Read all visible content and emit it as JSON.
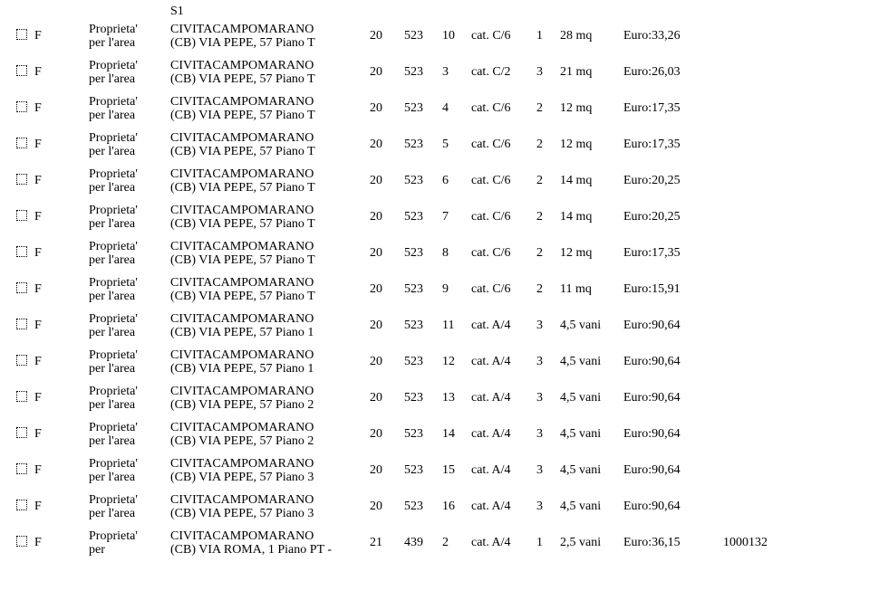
{
  "header_label": "S1",
  "desc_line1": "Proprieta'",
  "desc_line2": "per l'area",
  "desc_line2_alt": "per",
  "rows": [
    {
      "f": "F",
      "addr1": "CIVITACAMPOMARANO",
      "addr2": "(CB) VIA PEPE, 57 Piano T",
      "a": "20",
      "b": "523",
      "c": "10",
      "cat": "cat. C/6",
      "d": "1",
      "e": "28 mq",
      "euro": "Euro:33,26",
      "extra": ""
    },
    {
      "f": "F",
      "addr1": "CIVITACAMPOMARANO",
      "addr2": "(CB) VIA PEPE, 57 Piano T",
      "a": "20",
      "b": "523",
      "c": "3",
      "cat": "cat. C/2",
      "d": "3",
      "e": "21 mq",
      "euro": "Euro:26,03",
      "extra": ""
    },
    {
      "f": "F",
      "addr1": "CIVITACAMPOMARANO",
      "addr2": "(CB) VIA PEPE, 57 Piano T",
      "a": "20",
      "b": "523",
      "c": "4",
      "cat": "cat. C/6",
      "d": "2",
      "e": "12 mq",
      "euro": "Euro:17,35",
      "extra": ""
    },
    {
      "f": "F",
      "addr1": "CIVITACAMPOMARANO",
      "addr2": "(CB) VIA PEPE, 57 Piano T",
      "a": "20",
      "b": "523",
      "c": "5",
      "cat": "cat. C/6",
      "d": "2",
      "e": "12 mq",
      "euro": "Euro:17,35",
      "extra": ""
    },
    {
      "f": "F",
      "addr1": "CIVITACAMPOMARANO",
      "addr2": "(CB) VIA PEPE, 57 Piano T",
      "a": "20",
      "b": "523",
      "c": "6",
      "cat": "cat. C/6",
      "d": "2",
      "e": "14 mq",
      "euro": "Euro:20,25",
      "extra": ""
    },
    {
      "f": "F",
      "addr1": "CIVITACAMPOMARANO",
      "addr2": "(CB) VIA PEPE, 57 Piano T",
      "a": "20",
      "b": "523",
      "c": "7",
      "cat": "cat. C/6",
      "d": "2",
      "e": "14 mq",
      "euro": "Euro:20,25",
      "extra": ""
    },
    {
      "f": "F",
      "addr1": "CIVITACAMPOMARANO",
      "addr2": "(CB) VIA PEPE, 57 Piano T",
      "a": "20",
      "b": "523",
      "c": "8",
      "cat": "cat. C/6",
      "d": "2",
      "e": "12 mq",
      "euro": "Euro:17,35",
      "extra": ""
    },
    {
      "f": "F",
      "addr1": "CIVITACAMPOMARANO",
      "addr2": "(CB) VIA PEPE, 57 Piano T",
      "a": "20",
      "b": "523",
      "c": "9",
      "cat": "cat. C/6",
      "d": "2",
      "e": "11 mq",
      "euro": "Euro:15,91",
      "extra": ""
    },
    {
      "f": "F",
      "addr1": "CIVITACAMPOMARANO",
      "addr2": "(CB) VIA PEPE, 57 Piano 1",
      "a": "20",
      "b": "523",
      "c": "11",
      "cat": "cat. A/4",
      "d": "3",
      "e": "4,5 vani",
      "euro": "Euro:90,64",
      "extra": ""
    },
    {
      "f": "F",
      "addr1": "CIVITACAMPOMARANO",
      "addr2": "(CB) VIA PEPE, 57 Piano 1",
      "a": "20",
      "b": "523",
      "c": "12",
      "cat": "cat. A/4",
      "d": "3",
      "e": "4,5 vani",
      "euro": "Euro:90,64",
      "extra": ""
    },
    {
      "f": "F",
      "addr1": "CIVITACAMPOMARANO",
      "addr2": "(CB) VIA PEPE, 57 Piano 2",
      "a": "20",
      "b": "523",
      "c": "13",
      "cat": "cat. A/4",
      "d": "3",
      "e": "4,5 vani",
      "euro": "Euro:90,64",
      "extra": ""
    },
    {
      "f": "F",
      "addr1": "CIVITACAMPOMARANO",
      "addr2": "(CB) VIA PEPE, 57 Piano 2",
      "a": "20",
      "b": "523",
      "c": "14",
      "cat": "cat. A/4",
      "d": "3",
      "e": "4,5 vani",
      "euro": "Euro:90,64",
      "extra": ""
    },
    {
      "f": "F",
      "addr1": "CIVITACAMPOMARANO",
      "addr2": "(CB) VIA PEPE, 57 Piano 3",
      "a": "20",
      "b": "523",
      "c": "15",
      "cat": "cat. A/4",
      "d": "3",
      "e": "4,5 vani",
      "euro": "Euro:90,64",
      "extra": ""
    },
    {
      "f": "F",
      "addr1": "CIVITACAMPOMARANO",
      "addr2": "(CB) VIA PEPE, 57 Piano 3",
      "a": "20",
      "b": "523",
      "c": "16",
      "cat": "cat. A/4",
      "d": "3",
      "e": "4,5 vani",
      "euro": "Euro:90,64",
      "extra": ""
    },
    {
      "f": "F",
      "addr1": "CIVITACAMPOMARANO",
      "addr2": "(CB) VIA ROMA, 1 Piano PT -",
      "a": "21",
      "b": "439",
      "c": "2",
      "cat": "cat. A/4",
      "d": "1",
      "e": "2,5 vani",
      "euro": "Euro:36,15",
      "extra": "1000132",
      "desc2_alt": true
    }
  ]
}
